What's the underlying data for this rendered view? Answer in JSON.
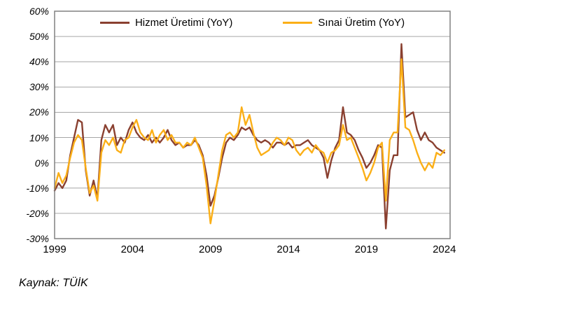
{
  "source": {
    "text": "Kaynak: TÜİK"
  },
  "chart_data": {
    "type": "line",
    "title": "",
    "xlabel": "",
    "ylabel": "",
    "ylim": [
      -30,
      60
    ],
    "grid": true,
    "legend_position": "top-center",
    "y_tick_values": [
      60,
      50,
      40,
      30,
      20,
      10,
      0,
      -10,
      -20,
      -30
    ],
    "y_tick_labels": [
      "60%",
      "50%",
      "40%",
      "30%",
      "20%",
      "10%",
      "0%",
      "-10%",
      "-20%",
      "-30%"
    ],
    "x_tick_years": [
      1999,
      2004,
      2009,
      2014,
      2019,
      2024
    ],
    "x_tick_labels": [
      "1999",
      "2004",
      "2009",
      "2014",
      "2019",
      "2024"
    ],
    "x_start": 1999,
    "x_step_years": 0.25,
    "frequency": "quarterly",
    "colors": {
      "grid": "#a6a6a6",
      "frame": "#808080"
    },
    "series": [
      {
        "name": "Hizmet Üretimi (YoY)",
        "color": "#8A4030",
        "values": [
          -11,
          -8,
          -10,
          -7,
          3,
          10,
          17,
          16,
          -3,
          -13,
          -7,
          -14,
          9,
          15,
          12,
          15,
          7,
          10,
          8,
          13,
          16,
          12,
          10,
          9,
          11,
          8,
          10,
          8,
          10,
          13,
          9,
          7,
          8,
          6,
          7,
          7,
          9,
          7,
          3,
          -5,
          -17,
          -13,
          -6,
          2,
          8,
          10,
          9,
          11,
          14,
          13,
          14,
          11,
          9,
          8,
          9,
          8,
          6,
          8,
          8,
          7,
          8,
          6,
          7,
          7,
          8,
          9,
          7,
          6,
          5,
          2,
          -6,
          1,
          6,
          9,
          22,
          12,
          11,
          9,
          5,
          2,
          -2,
          0,
          3,
          7,
          6,
          -26,
          -3,
          3,
          3,
          47,
          18,
          19,
          20,
          13,
          9,
          12,
          9,
          8,
          6,
          5,
          4
        ]
      },
      {
        "name": "Sınai Üretim (YoY)",
        "color": "#FBAF17",
        "values": [
          -10,
          -4,
          -8,
          -5,
          2,
          8,
          11,
          9,
          -2,
          -12,
          -9,
          -15,
          4,
          9,
          7,
          10,
          5,
          4,
          9,
          10,
          14,
          17,
          12,
          10,
          9,
          13,
          8,
          11,
          13,
          9,
          11,
          8,
          8,
          6,
          8,
          7,
          10,
          6,
          2,
          -9,
          -24,
          -15,
          -5,
          5,
          11,
          12,
          10,
          12,
          22,
          15,
          19,
          12,
          6,
          3,
          4,
          5,
          8,
          10,
          9,
          7,
          10,
          9,
          5,
          3,
          5,
          6,
          4,
          7,
          5,
          4,
          0,
          4,
          5,
          7,
          15,
          9,
          10,
          6,
          2,
          -2,
          -7,
          -4,
          0,
          6,
          8,
          -15,
          9,
          12,
          12,
          41,
          14,
          13,
          9,
          4,
          0,
          -3,
          0,
          -2,
          4,
          3,
          5
        ]
      }
    ]
  }
}
